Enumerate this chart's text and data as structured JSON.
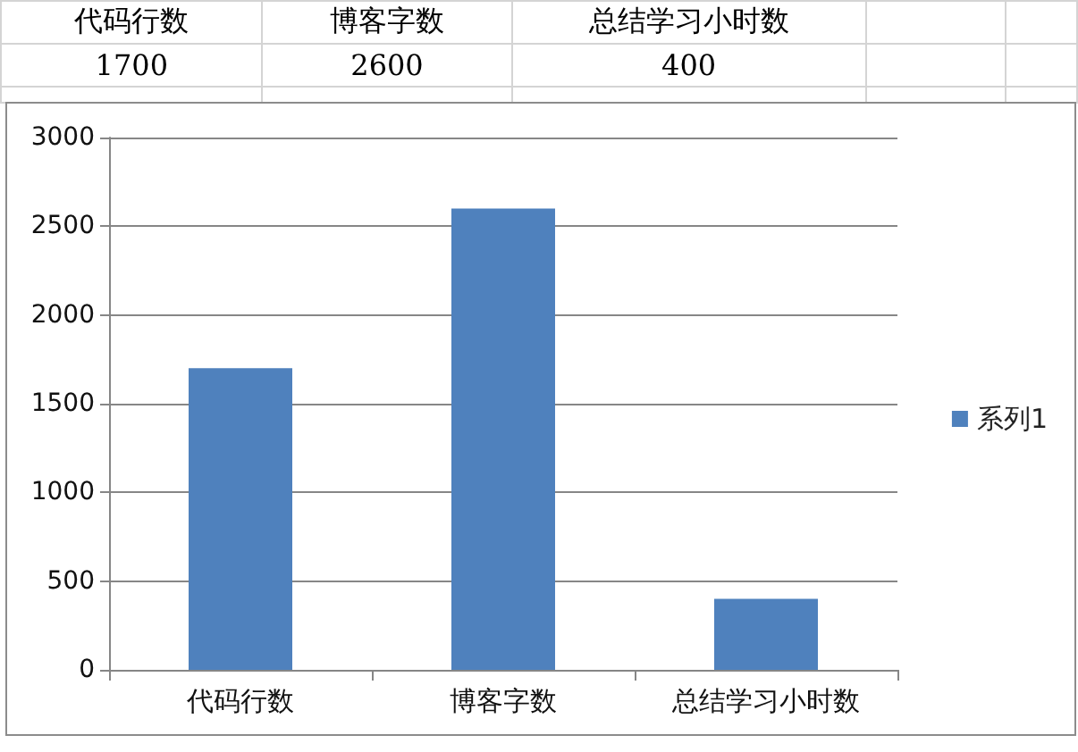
{
  "chart_data": {
    "type": "bar",
    "categories": [
      "代码行数",
      "博客字数",
      "总结学习小时数"
    ],
    "series": [
      {
        "name": "系列1",
        "color": "#4f81bd",
        "values": [
          1700,
          2600,
          400
        ]
      }
    ],
    "ylim": [
      0,
      3000
    ],
    "yticks": [
      0,
      500,
      1000,
      1500,
      2000,
      2500,
      3000
    ],
    "grid": "y",
    "legend": "right",
    "data_labels": true
  }
}
